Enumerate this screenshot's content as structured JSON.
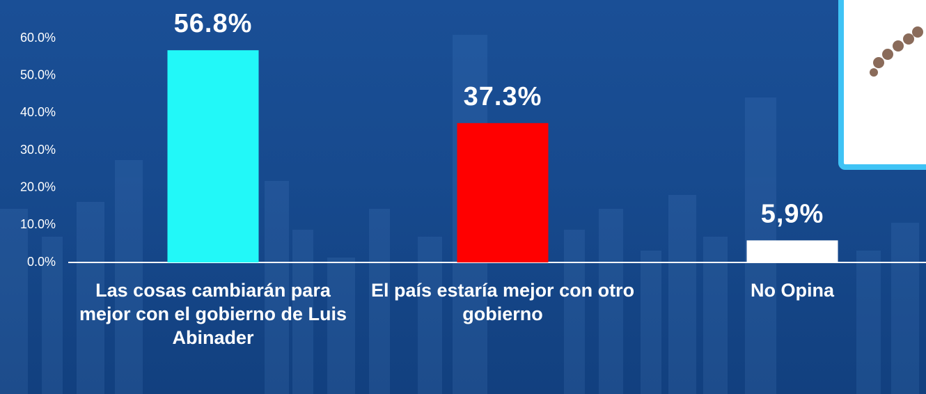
{
  "chart_data": {
    "type": "bar",
    "categories": [
      "Las cosas cambiarán para mejor con el gobierno de Luis Abinader",
      "El país estaría mejor con otro gobierno",
      "No Opina"
    ],
    "values": [
      56.8,
      37.3,
      5.9
    ],
    "value_labels": [
      "56.8%",
      "37.3%",
      "5,9%"
    ],
    "colors": [
      "#22f8f8",
      "#ff0000",
      "#ffffff"
    ],
    "ylim": [
      0,
      60
    ],
    "yticks": [
      {
        "value": 0,
        "label": "0.0%"
      },
      {
        "value": 10,
        "label": "10.0%"
      },
      {
        "value": 20,
        "label": "20.0%"
      },
      {
        "value": 30,
        "label": "30.0%"
      },
      {
        "value": 40,
        "label": "40.0%"
      },
      {
        "value": 50,
        "label": "50.0%"
      },
      {
        "value": 60,
        "label": "60.0%"
      }
    ],
    "grid": false
  }
}
